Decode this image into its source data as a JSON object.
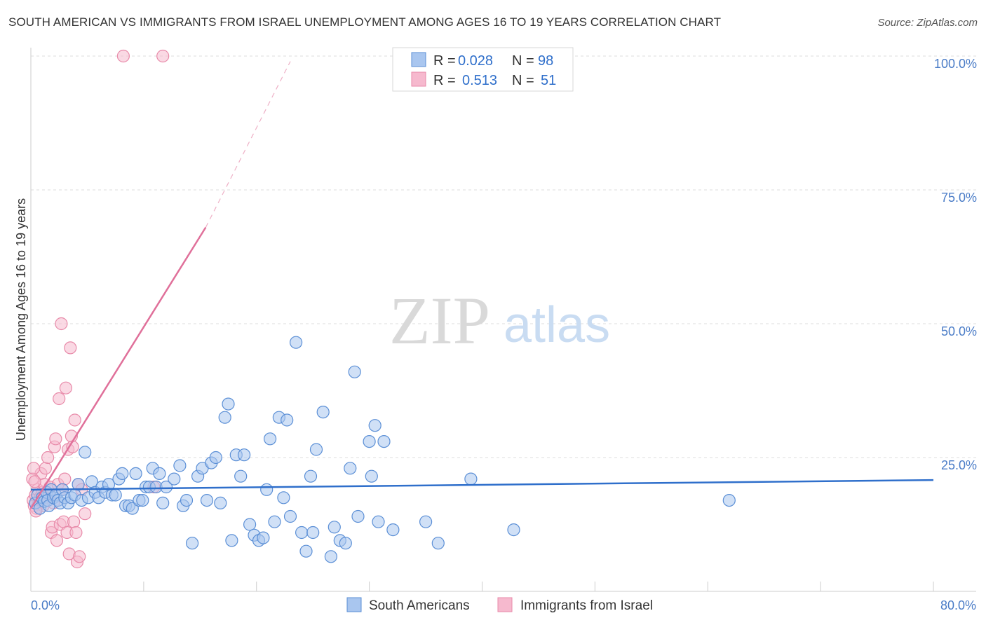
{
  "header": {
    "title": "SOUTH AMERICAN VS IMMIGRANTS FROM ISRAEL UNEMPLOYMENT AMONG AGES 16 TO 19 YEARS CORRELATION CHART",
    "source": "Source: ZipAtlas.com"
  },
  "watermark": {
    "zip": "ZIP",
    "atlas": "atlas"
  },
  "colors": {
    "blue_fill": "#a9c6ef",
    "blue_stroke": "#5b8fd6",
    "blue_line": "#2f6fcb",
    "pink_fill": "#f6b9ce",
    "pink_stroke": "#e88aa9",
    "pink_line": "#e0709a",
    "grid": "#dddddd",
    "tick_text": "#4a7cc7"
  },
  "legend": {
    "rows": [
      {
        "r_label": "R =",
        "r_value": "0.028",
        "n_label": "N =",
        "n_value": "98"
      },
      {
        "r_label": "R =",
        "r_value": "0.513",
        "n_label": "N =",
        "n_value": "51"
      }
    ]
  },
  "bottom_legend": {
    "series1": "South Americans",
    "series2": "Immigrants from Israel"
  },
  "chart_data": {
    "type": "scatter",
    "title": "SOUTH AMERICAN VS IMMIGRANTS FROM ISRAEL UNEMPLOYMENT AMONG AGES 16 TO 19 YEARS CORRELATION CHART",
    "xlabel": "",
    "ylabel": "Unemployment Among Ages 16 to 19 years",
    "xlim": [
      0,
      80
    ],
    "ylim": [
      0,
      100
    ],
    "x_tick_labels": [
      "0.0%",
      "80.0%"
    ],
    "y_ticks": [
      25,
      50,
      75,
      100
    ],
    "y_tick_labels": [
      "25.0%",
      "50.0%",
      "75.0%",
      "100.0%"
    ],
    "legend_position": "top-center",
    "series": [
      {
        "name": "South Americans",
        "r": 0.028,
        "n": 98,
        "trend": {
          "x": [
            0,
            80
          ],
          "y": [
            19.0,
            20.8
          ]
        },
        "points": [
          [
            0.4,
            16.5
          ],
          [
            0.6,
            18
          ],
          [
            0.8,
            15.5
          ],
          [
            1.0,
            17.5
          ],
          [
            1.2,
            16.8
          ],
          [
            1.4,
            18.5
          ],
          [
            1.5,
            17
          ],
          [
            1.6,
            16
          ],
          [
            1.8,
            19
          ],
          [
            2.0,
            17.5
          ],
          [
            2.2,
            18
          ],
          [
            2.4,
            17
          ],
          [
            2.6,
            16.5
          ],
          [
            2.8,
            19
          ],
          [
            3.0,
            17.5
          ],
          [
            3.3,
            16.5
          ],
          [
            3.6,
            17.5
          ],
          [
            3.9,
            18
          ],
          [
            4.2,
            20
          ],
          [
            4.5,
            17
          ],
          [
            4.8,
            26
          ],
          [
            5.1,
            17.5
          ],
          [
            5.4,
            20.5
          ],
          [
            5.7,
            18.5
          ],
          [
            6.0,
            17.5
          ],
          [
            6.3,
            19.5
          ],
          [
            6.6,
            18.5
          ],
          [
            6.9,
            20
          ],
          [
            7.2,
            18
          ],
          [
            7.5,
            18
          ],
          [
            7.8,
            21
          ],
          [
            8.1,
            22
          ],
          [
            8.4,
            16
          ],
          [
            8.7,
            16
          ],
          [
            9.0,
            15.5
          ],
          [
            9.3,
            22
          ],
          [
            9.6,
            17
          ],
          [
            9.9,
            17
          ],
          [
            10.2,
            19.5
          ],
          [
            10.5,
            19.5
          ],
          [
            10.8,
            23
          ],
          [
            11.1,
            19.5
          ],
          [
            11.4,
            22
          ],
          [
            11.7,
            16.5
          ],
          [
            12.0,
            19.5
          ],
          [
            12.7,
            21
          ],
          [
            13.2,
            23.5
          ],
          [
            13.5,
            16
          ],
          [
            13.8,
            17
          ],
          [
            14.3,
            9
          ],
          [
            14.8,
            21.5
          ],
          [
            15.2,
            23
          ],
          [
            15.6,
            17
          ],
          [
            16.0,
            24
          ],
          [
            16.4,
            25
          ],
          [
            16.8,
            16.5
          ],
          [
            17.2,
            32.5
          ],
          [
            17.5,
            35
          ],
          [
            17.8,
            9.5
          ],
          [
            18.2,
            25.5
          ],
          [
            18.6,
            21.5
          ],
          [
            18.9,
            25.5
          ],
          [
            19.4,
            12.5
          ],
          [
            19.8,
            10.5
          ],
          [
            20.2,
            9.5
          ],
          [
            20.6,
            10
          ],
          [
            20.9,
            19
          ],
          [
            21.2,
            28.5
          ],
          [
            21.6,
            13
          ],
          [
            22.0,
            32.5
          ],
          [
            22.4,
            17.5
          ],
          [
            22.7,
            32
          ],
          [
            23.0,
            14
          ],
          [
            23.5,
            46.5
          ],
          [
            24.0,
            11
          ],
          [
            24.4,
            7.5
          ],
          [
            24.8,
            21.5
          ],
          [
            25.0,
            11
          ],
          [
            25.3,
            26.5
          ],
          [
            25.9,
            33.5
          ],
          [
            26.6,
            6.5
          ],
          [
            26.9,
            12
          ],
          [
            27.4,
            9.5
          ],
          [
            27.9,
            9
          ],
          [
            28.3,
            23
          ],
          [
            28.7,
            41
          ],
          [
            29.0,
            14
          ],
          [
            30.0,
            28
          ],
          [
            30.2,
            21.5
          ],
          [
            30.5,
            31
          ],
          [
            30.8,
            13
          ],
          [
            31.3,
            28
          ],
          [
            32.1,
            11.5
          ],
          [
            35.0,
            13
          ],
          [
            36.1,
            9
          ],
          [
            39.0,
            21
          ],
          [
            42.8,
            11.5
          ],
          [
            61.9,
            17
          ]
        ]
      },
      {
        "name": "Immigrants from Israel",
        "r": 0.513,
        "n": 51,
        "trend": {
          "x": [
            0,
            15.5
          ],
          "y": [
            15.5,
            68
          ],
          "dashed_x": [
            15.5,
            23
          ],
          "dashed_y": [
            68,
            99
          ]
        },
        "points": [
          [
            0.2,
            17
          ],
          [
            0.3,
            16
          ],
          [
            0.4,
            18
          ],
          [
            0.5,
            15.5
          ],
          [
            0.6,
            19
          ],
          [
            0.7,
            16.5
          ],
          [
            0.8,
            17.5
          ],
          [
            0.9,
            22
          ],
          [
            1.0,
            18.5
          ],
          [
            1.1,
            16
          ],
          [
            1.2,
            20
          ],
          [
            1.3,
            23
          ],
          [
            1.4,
            17.5
          ],
          [
            1.5,
            25
          ],
          [
            1.6,
            18
          ],
          [
            1.7,
            19.5
          ],
          [
            1.8,
            11
          ],
          [
            1.9,
            12
          ],
          [
            2.0,
            16.5
          ],
          [
            2.1,
            27
          ],
          [
            2.2,
            28.5
          ],
          [
            2.3,
            9.5
          ],
          [
            2.4,
            20
          ],
          [
            2.5,
            36
          ],
          [
            2.6,
            12.5
          ],
          [
            2.7,
            50
          ],
          [
            2.8,
            19
          ],
          [
            2.9,
            13
          ],
          [
            3.0,
            21
          ],
          [
            3.1,
            38
          ],
          [
            3.2,
            11
          ],
          [
            3.3,
            26.5
          ],
          [
            3.4,
            7
          ],
          [
            3.5,
            45.5
          ],
          [
            3.6,
            29
          ],
          [
            3.7,
            27
          ],
          [
            3.8,
            13
          ],
          [
            3.9,
            32
          ],
          [
            4.0,
            11
          ],
          [
            4.1,
            5.5
          ],
          [
            4.2,
            20
          ],
          [
            4.3,
            6.5
          ],
          [
            4.5,
            19
          ],
          [
            0.15,
            21
          ],
          [
            0.25,
            23
          ],
          [
            0.35,
            20.5
          ],
          [
            0.45,
            15
          ],
          [
            8.2,
            100
          ],
          [
            11.7,
            100
          ],
          [
            10.9,
            19.5
          ],
          [
            4.8,
            14.5
          ]
        ]
      }
    ]
  }
}
